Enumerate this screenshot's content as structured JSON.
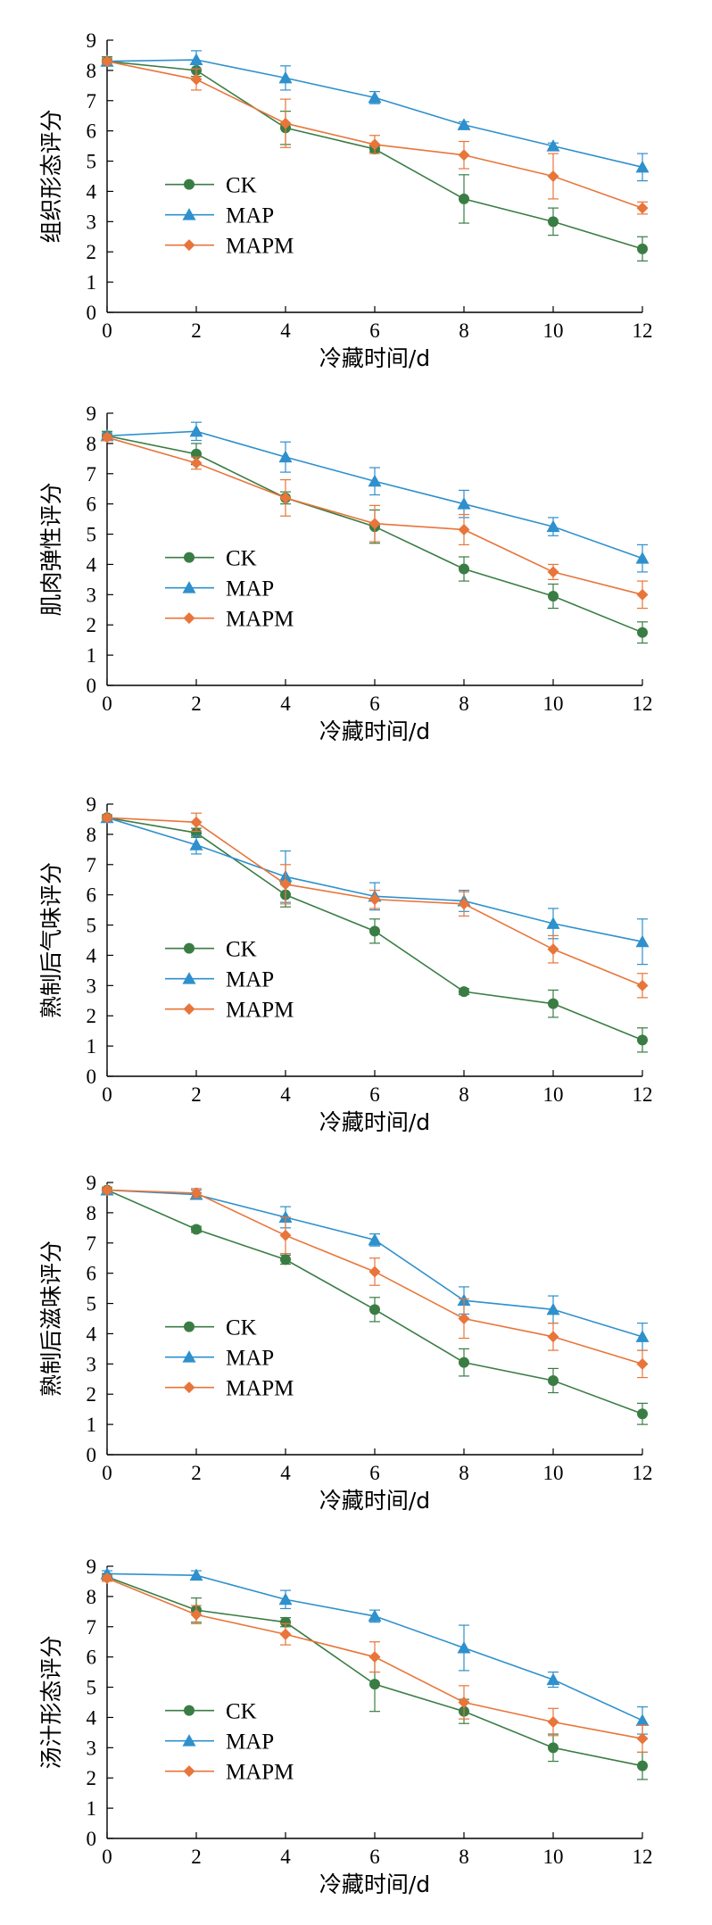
{
  "colors": {
    "CK": "#3a7d44",
    "MAP": "#2e90cc",
    "MAPM": "#e8753a"
  },
  "chart_data": [
    {
      "type": "line",
      "x": [
        0,
        2,
        4,
        6,
        8,
        10,
        12
      ],
      "xlabel": "冷藏时间/d",
      "ylabel": "组织形态评分",
      "xlim": [
        0,
        12
      ],
      "ylim": [
        0,
        9
      ],
      "xticks": [
        "0",
        "2",
        "4",
        "6",
        "8",
        "10",
        "12"
      ],
      "yticks": [
        "0",
        "1",
        "2",
        "3",
        "4",
        "5",
        "6",
        "7",
        "8",
        "9"
      ],
      "legend": "left-lower",
      "series": [
        {
          "name": "CK",
          "marker": "circle",
          "values": [
            8.3,
            8.0,
            6.1,
            5.4,
            3.75,
            3.0,
            2.1
          ],
          "errors": [
            0.15,
            0.2,
            0.55,
            0.1,
            0.8,
            0.45,
            0.4
          ]
        },
        {
          "name": "MAP",
          "marker": "triangle",
          "values": [
            8.3,
            8.35,
            7.75,
            7.1,
            6.2,
            5.5,
            4.8
          ],
          "errors": [
            0.1,
            0.3,
            0.4,
            0.2,
            0.1,
            0.1,
            0.45
          ]
        },
        {
          "name": "MAPM",
          "marker": "diamond",
          "values": [
            8.3,
            7.7,
            6.25,
            5.55,
            5.2,
            4.5,
            3.45
          ],
          "errors": [
            0.1,
            0.35,
            0.8,
            0.3,
            0.45,
            0.75,
            0.2
          ]
        }
      ]
    },
    {
      "type": "line",
      "x": [
        0,
        2,
        4,
        6,
        8,
        10,
        12
      ],
      "xlabel": "冷藏时间/d",
      "ylabel": "肌肉弹性评分",
      "xlim": [
        0,
        12
      ],
      "ylim": [
        0,
        9
      ],
      "xticks": [
        "0",
        "2",
        "4",
        "6",
        "8",
        "10",
        "12"
      ],
      "yticks": [
        "0",
        "1",
        "2",
        "3",
        "4",
        "5",
        "6",
        "7",
        "8",
        "9"
      ],
      "legend": "left-lower",
      "series": [
        {
          "name": "CK",
          "marker": "circle",
          "values": [
            8.25,
            7.65,
            6.2,
            5.25,
            3.85,
            2.95,
            1.75
          ],
          "errors": [
            0.15,
            0.35,
            0.2,
            0.55,
            0.4,
            0.4,
            0.35
          ]
        },
        {
          "name": "MAP",
          "marker": "triangle",
          "values": [
            8.25,
            8.4,
            7.55,
            6.75,
            6.0,
            5.25,
            4.2
          ],
          "errors": [
            0.1,
            0.3,
            0.5,
            0.45,
            0.45,
            0.3,
            0.45
          ]
        },
        {
          "name": "MAPM",
          "marker": "diamond",
          "values": [
            8.2,
            7.35,
            6.2,
            5.35,
            5.15,
            3.75,
            3.0
          ],
          "errors": [
            0.1,
            0.2,
            0.6,
            0.6,
            0.5,
            0.25,
            0.45
          ]
        }
      ]
    },
    {
      "type": "line",
      "x": [
        0,
        2,
        4,
        6,
        8,
        10,
        12
      ],
      "xlabel": "冷藏时间/d",
      "ylabel": "熟制后气味评分",
      "xlim": [
        0,
        12
      ],
      "ylim": [
        0,
        9
      ],
      "xticks": [
        "0",
        "2",
        "4",
        "6",
        "8",
        "10",
        "12"
      ],
      "yticks": [
        "0",
        "1",
        "2",
        "3",
        "4",
        "5",
        "6",
        "7",
        "8",
        "9"
      ],
      "legend": "left-lower",
      "series": [
        {
          "name": "CK",
          "marker": "circle",
          "values": [
            8.55,
            8.05,
            6.0,
            4.8,
            2.8,
            2.4,
            1.2
          ],
          "errors": [
            0.1,
            0.15,
            0.4,
            0.4,
            0.1,
            0.45,
            0.4
          ]
        },
        {
          "name": "MAP",
          "marker": "triangle",
          "values": [
            8.55,
            7.65,
            6.6,
            5.95,
            5.8,
            5.05,
            4.45
          ],
          "errors": [
            0.1,
            0.3,
            0.85,
            0.45,
            0.35,
            0.5,
            0.75
          ]
        },
        {
          "name": "MAPM",
          "marker": "diamond",
          "values": [
            8.55,
            8.4,
            6.35,
            5.85,
            5.7,
            4.2,
            3.0
          ],
          "errors": [
            0.1,
            0.3,
            0.65,
            0.3,
            0.4,
            0.45,
            0.4
          ]
        }
      ]
    },
    {
      "type": "line",
      "x": [
        0,
        2,
        4,
        6,
        8,
        10,
        12
      ],
      "xlabel": "冷藏时间/d",
      "ylabel": "熟制后滋味评分",
      "xlim": [
        0,
        12
      ],
      "ylim": [
        0,
        9
      ],
      "xticks": [
        "0",
        "2",
        "4",
        "6",
        "8",
        "10",
        "12"
      ],
      "yticks": [
        "0",
        "1",
        "2",
        "3",
        "4",
        "5",
        "6",
        "7",
        "8",
        "9"
      ],
      "legend": "left-lower",
      "series": [
        {
          "name": "CK",
          "marker": "circle",
          "values": [
            8.75,
            7.45,
            6.45,
            4.8,
            3.05,
            2.45,
            1.35
          ],
          "errors": [
            0.1,
            0.1,
            0.15,
            0.4,
            0.45,
            0.4,
            0.35
          ]
        },
        {
          "name": "MAP",
          "marker": "triangle",
          "values": [
            8.75,
            8.6,
            7.85,
            7.1,
            5.1,
            4.8,
            3.9
          ],
          "errors": [
            0.1,
            0.15,
            0.35,
            0.2,
            0.45,
            0.45,
            0.45
          ]
        },
        {
          "name": "MAPM",
          "marker": "diamond",
          "values": [
            8.75,
            8.65,
            7.25,
            6.05,
            4.5,
            3.9,
            3.0
          ],
          "errors": [
            0.1,
            0.15,
            0.6,
            0.45,
            0.65,
            0.45,
            0.45
          ]
        }
      ]
    },
    {
      "type": "line",
      "x": [
        0,
        2,
        4,
        6,
        8,
        10,
        12
      ],
      "xlabel": "冷藏时间/d",
      "ylabel": "汤汁形态评分",
      "xlim": [
        0,
        12
      ],
      "ylim": [
        0,
        9
      ],
      "xticks": [
        "0",
        "2",
        "4",
        "6",
        "8",
        "10",
        "12"
      ],
      "yticks": [
        "0",
        "1",
        "2",
        "3",
        "4",
        "5",
        "6",
        "7",
        "8",
        "9"
      ],
      "legend": "left-lower",
      "series": [
        {
          "name": "CK",
          "marker": "circle",
          "values": [
            8.65,
            7.55,
            7.15,
            5.1,
            4.2,
            3.0,
            2.4
          ],
          "errors": [
            0.1,
            0.4,
            0.15,
            0.9,
            0.4,
            0.45,
            0.45
          ]
        },
        {
          "name": "MAP",
          "marker": "triangle",
          "values": [
            8.75,
            8.7,
            7.9,
            7.35,
            6.3,
            5.25,
            3.9
          ],
          "errors": [
            0.1,
            0.15,
            0.3,
            0.2,
            0.75,
            0.25,
            0.45
          ]
        },
        {
          "name": "MAPM",
          "marker": "diamond",
          "values": [
            8.6,
            7.4,
            6.75,
            6.0,
            4.5,
            3.85,
            3.3
          ],
          "errors": [
            0.1,
            0.3,
            0.35,
            0.5,
            0.55,
            0.45,
            0.45
          ]
        }
      ]
    }
  ]
}
